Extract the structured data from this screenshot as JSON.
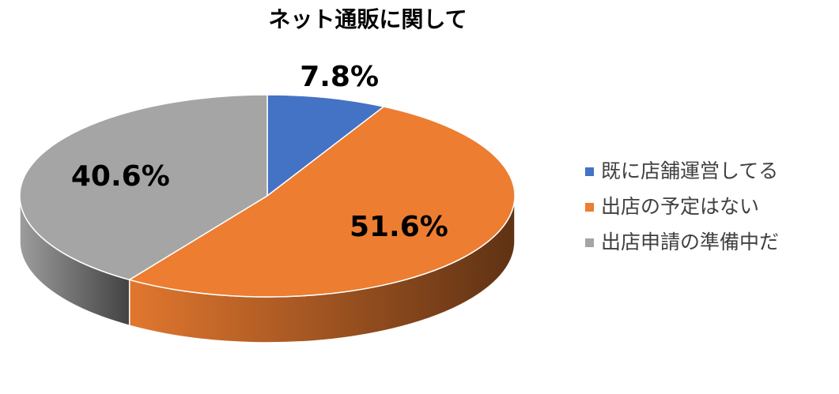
{
  "chart_data": {
    "type": "pie",
    "title": "ネット通販に関して",
    "categories": [
      "既に店舗運営してる",
      "出店の予定はない",
      "出店申請の準備中だ"
    ],
    "values": [
      7.8,
      51.6,
      40.6
    ],
    "value_labels": [
      "7.8%",
      "51.6%",
      "40.6%"
    ],
    "colors": [
      "#4472c4",
      "#ed7d31",
      "#a5a5a5"
    ],
    "legend": "right"
  }
}
